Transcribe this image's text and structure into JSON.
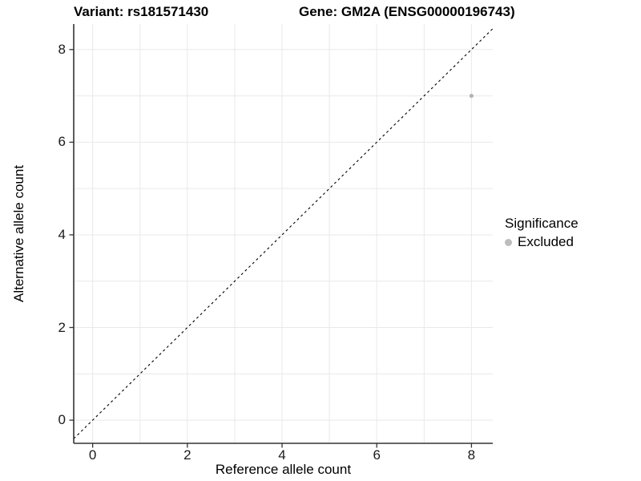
{
  "header": {
    "left_title": "Variant: rs181571430",
    "right_title": "Gene: GM2A (ENSG00000196743)"
  },
  "legend": {
    "title": "Significance",
    "items": [
      {
        "label": "Excluded",
        "color": "#bdbdbd"
      }
    ]
  },
  "colors": {
    "background": "#ffffff",
    "grid": "#e9e9e9",
    "axis": "#333333",
    "tick_text": "#1a1a1a",
    "dashed_line": "#000000",
    "point": "#b4b4b4"
  },
  "chart_data": {
    "type": "scatter",
    "title": "Variant: rs181571430 — Gene: GM2A (ENSG00000196743)",
    "xlabel": "Reference allele count",
    "ylabel": "Alternative allele count",
    "xlim": [
      -0.4,
      8.45
    ],
    "ylim": [
      -0.5,
      8.55
    ],
    "xticks": [
      0,
      2,
      4,
      6,
      8
    ],
    "yticks": [
      0,
      2,
      4,
      6,
      8
    ],
    "grid_values": [
      0,
      1,
      2,
      3,
      4,
      5,
      6,
      7,
      8
    ],
    "grid": "on",
    "legend_position": "right",
    "identity_line": {
      "equation": "y = x",
      "style": "dashed",
      "color": "#000000"
    },
    "series": [
      {
        "name": "Excluded",
        "color": "#b4b4b4",
        "points": [
          {
            "x": 8,
            "y": 7
          }
        ]
      }
    ]
  }
}
